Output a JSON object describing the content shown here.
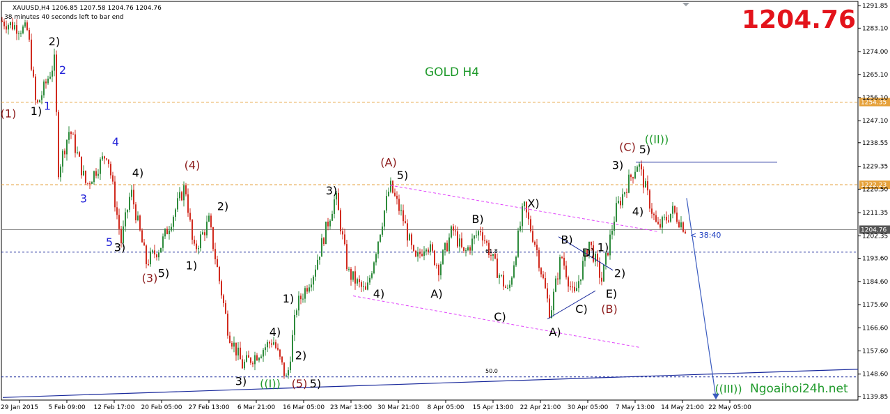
{
  "header": {
    "symbol_line": "XAUUSD,H4  1206.85 1207.58 1204.76 1204.76",
    "timer_line": "38 minutes 40 seconds left to bar end"
  },
  "chart_title": "GOLD H4",
  "current_price": "1204.76",
  "watermark": "Ngoaihoi24h.net",
  "countdown": "< 38:40",
  "chart_data": {
    "type": "candlestick",
    "symbol": "XAUUSD",
    "timeframe": "H4",
    "ylim": [
      1138.5,
      1293.5
    ],
    "y_ticks": [
      "1291.85",
      "1283.10",
      "1274.00",
      "1265.10",
      "1256.10",
      "1247.10",
      "1238.55",
      "1229.35",
      "1220.50",
      "1211.35",
      "1202.35",
      "1193.60",
      "1184.60",
      "1175.60",
      "1166.60",
      "1157.60",
      "1148.60",
      "1139.85"
    ],
    "x_ticks": [
      "29 Jan 2015",
      "5 Feb 09:00",
      "12 Feb 17:00",
      "20 Feb 05:00",
      "27 Feb 13:00",
      "6 Mar 21:00",
      "16 Mar 05:00",
      "23 Mar 13:00",
      "30 Mar 21:00",
      "8 Apr 05:00",
      "15 Apr 13:00",
      "22 Apr 21:00",
      "30 Apr 05:00",
      "7 May 13:00",
      "14 May 21:00",
      "22 May 05:00"
    ],
    "price_path": [
      [
        0,
        1286
      ],
      [
        40,
        1282
      ],
      [
        52,
        1252
      ],
      [
        78,
        1270
      ],
      [
        84,
        1228
      ],
      [
        100,
        1244
      ],
      [
        124,
        1222
      ],
      [
        154,
        1235
      ],
      [
        174,
        1200
      ],
      [
        188,
        1220
      ],
      [
        210,
        1192
      ],
      [
        230,
        1198
      ],
      [
        266,
        1222
      ],
      [
        278,
        1196
      ],
      [
        300,
        1208
      ],
      [
        328,
        1165
      ],
      [
        348,
        1152
      ],
      [
        372,
        1157
      ],
      [
        392,
        1162
      ],
      [
        412,
        1146
      ],
      [
        426,
        1175
      ],
      [
        450,
        1188
      ],
      [
        482,
        1218
      ],
      [
        500,
        1188
      ],
      [
        526,
        1180
      ],
      [
        560,
        1222
      ],
      [
        580,
        1208
      ],
      [
        596,
        1192
      ],
      [
        612,
        1200
      ],
      [
        630,
        1190
      ],
      [
        650,
        1205
      ],
      [
        666,
        1195
      ],
      [
        690,
        1205
      ],
      [
        712,
        1190
      ],
      [
        730,
        1180
      ],
      [
        752,
        1214
      ],
      [
        770,
        1198
      ],
      [
        790,
        1172
      ],
      [
        806,
        1195
      ],
      [
        824,
        1178
      ],
      [
        846,
        1200
      ],
      [
        864,
        1185
      ],
      [
        884,
        1212
      ],
      [
        900,
        1222
      ],
      [
        916,
        1231
      ],
      [
        932,
        1216
      ],
      [
        944,
        1205
      ],
      [
        966,
        1212
      ],
      [
        985,
        1204.76
      ]
    ],
    "horizontal_levels": [
      {
        "price": "1254.35",
        "style": "dashed",
        "color": "#e6a23c"
      },
      {
        "price": "1222.23",
        "style": "dashed",
        "color": "#e6a23c"
      },
      {
        "price": "1204.76",
        "style": "solid",
        "color": "#8c8c8c"
      },
      {
        "price": "1196.0",
        "style": "dashed",
        "color": "#1a2a9c"
      },
      {
        "price": "1147.5",
        "style": "dashed",
        "color": "#1a2a9c"
      }
    ],
    "fib_labels": [
      {
        "text": "61.8"
      },
      {
        "text": "50.0"
      }
    ],
    "wave_labels": [
      {
        "text": "(1)",
        "x": 12,
        "y": 1250,
        "color": "#8b1a1a"
      },
      {
        "text": "1)",
        "x": 52,
        "y": 1251,
        "color": "#000"
      },
      {
        "text": "1",
        "x": 68,
        "y": 1253,
        "color": "#2424d8"
      },
      {
        "text": "2)",
        "x": 78,
        "y": 1278,
        "color": "#000"
      },
      {
        "text": "2",
        "x": 90,
        "y": 1267,
        "color": "#2424d8"
      },
      {
        "text": "3",
        "x": 120,
        "y": 1217,
        "color": "#2424d8"
      },
      {
        "text": "4",
        "x": 166,
        "y": 1239,
        "color": "#2424d8"
      },
      {
        "text": "4)",
        "x": 198,
        "y": 1227,
        "color": "#000"
      },
      {
        "text": "5",
        "x": 157,
        "y": 1200,
        "color": "#2424d8"
      },
      {
        "text": "3)",
        "x": 172,
        "y": 1198,
        "color": "#000"
      },
      {
        "text": "(3)",
        "x": 215,
        "y": 1186,
        "color": "#8b1a1a"
      },
      {
        "text": "5)",
        "x": 235,
        "y": 1188,
        "color": "#000"
      },
      {
        "text": "(4)",
        "x": 276,
        "y": 1230,
        "color": "#8b1a1a"
      },
      {
        "text": "1)",
        "x": 275,
        "y": 1191,
        "color": "#000"
      },
      {
        "text": "2)",
        "x": 320,
        "y": 1214,
        "color": "#000"
      },
      {
        "text": "1)",
        "x": 414,
        "y": 1178,
        "color": "#000"
      },
      {
        "text": "4)",
        "x": 395,
        "y": 1165,
        "color": "#000"
      },
      {
        "text": "2)",
        "x": 432,
        "y": 1156,
        "color": "#000"
      },
      {
        "text": "3)",
        "x": 346,
        "y": 1146,
        "color": "#000"
      },
      {
        "text": "((I))",
        "x": 388,
        "y": 1145,
        "color": "#1f9a2b"
      },
      {
        "text": "(5)",
        "x": 430,
        "y": 1145,
        "color": "#8b1a1a"
      },
      {
        "text": "5)",
        "x": 453,
        "y": 1145,
        "color": "#000"
      },
      {
        "text": "3)",
        "x": 476,
        "y": 1220,
        "color": "#000"
      },
      {
        "text": "4)",
        "x": 544,
        "y": 1180,
        "color": "#000"
      },
      {
        "text": "(A)",
        "x": 558,
        "y": 1231,
        "color": "#8b1a1a"
      },
      {
        "text": "5)",
        "x": 578,
        "y": 1226,
        "color": "#000"
      },
      {
        "text": "A)",
        "x": 627,
        "y": 1180,
        "color": "#000"
      },
      {
        "text": "B)",
        "x": 686,
        "y": 1209,
        "color": "#000"
      },
      {
        "text": "C)",
        "x": 718,
        "y": 1171,
        "color": "#000"
      },
      {
        "text": "X)",
        "x": 766,
        "y": 1215,
        "color": "#000"
      },
      {
        "text": "B)",
        "x": 814,
        "y": 1201,
        "color": "#000"
      },
      {
        "text": "D)",
        "x": 845,
        "y": 1196,
        "color": "#000"
      },
      {
        "text": "1)",
        "x": 866,
        "y": 1198,
        "color": "#000"
      },
      {
        "text": "2)",
        "x": 890,
        "y": 1188,
        "color": "#000"
      },
      {
        "text": "E)",
        "x": 878,
        "y": 1180,
        "color": "#000"
      },
      {
        "text": "C)",
        "x": 835,
        "y": 1174,
        "color": "#000"
      },
      {
        "text": "(B)",
        "x": 875,
        "y": 1174,
        "color": "#8b1a1a"
      },
      {
        "text": "A)",
        "x": 797,
        "y": 1165,
        "color": "#000"
      },
      {
        "text": "3)",
        "x": 887,
        "y": 1230,
        "color": "#000"
      },
      {
        "text": "4)",
        "x": 916,
        "y": 1212,
        "color": "#000"
      },
      {
        "text": "(C)",
        "x": 901,
        "y": 1237,
        "color": "#8b1a1a"
      },
      {
        "text": "5)",
        "x": 926,
        "y": 1236,
        "color": "#000"
      },
      {
        "text": "((II))",
        "x": 943,
        "y": 1240,
        "color": "#1f9a2b"
      },
      {
        "text": "((III))",
        "x": 1046,
        "y": 1143,
        "color": "#1f9a2b"
      }
    ]
  }
}
